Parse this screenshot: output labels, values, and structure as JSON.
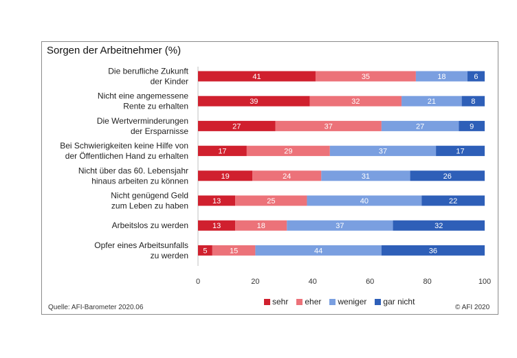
{
  "source": "Quelle: AFI-Barometer 2020.06",
  "copyright": "© AFI 2020",
  "colors": {
    "sehr": "#d0202e",
    "eher": "#ec7279",
    "weniger": "#7a9fe0",
    "gar_nicht": "#2e5fb8"
  },
  "chart_data": {
    "type": "bar",
    "orientation": "horizontal",
    "stacked": true,
    "title": "Sorgen der Arbeitnehmer (%)",
    "categories": [
      [
        "Die berufliche Zukunft",
        "der Kinder"
      ],
      [
        "Nicht eine angemessene",
        "Rente zu erhalten"
      ],
      [
        "Die Wertverminderungen",
        "der Ersparnisse"
      ],
      [
        "Bei Schwierigkeiten keine Hilfe von",
        "der Öffentlichen Hand zu erhalten"
      ],
      [
        "Nicht über das 60. Lebensjahr",
        "hinaus arbeiten zu können"
      ],
      [
        "Nicht genügend Geld",
        "zum Leben zu haben"
      ],
      [
        "Arbeitslos zu werden"
      ],
      [
        "Opfer eines Arbeitsunfalls",
        "zu werden"
      ]
    ],
    "series": [
      {
        "name": "sehr",
        "values": [
          41,
          39,
          27,
          17,
          19,
          13,
          13,
          5
        ]
      },
      {
        "name": "eher",
        "values": [
          35,
          32,
          37,
          29,
          24,
          25,
          18,
          15
        ]
      },
      {
        "name": "weniger",
        "values": [
          18,
          21,
          27,
          37,
          31,
          40,
          37,
          44
        ]
      },
      {
        "name": "gar nicht",
        "values": [
          6,
          8,
          9,
          17,
          26,
          22,
          32,
          36
        ]
      }
    ],
    "xlim": [
      0,
      100
    ],
    "xticks": [
      0,
      20,
      40,
      60,
      80,
      100
    ],
    "grid": false,
    "legend_position": "bottom"
  }
}
